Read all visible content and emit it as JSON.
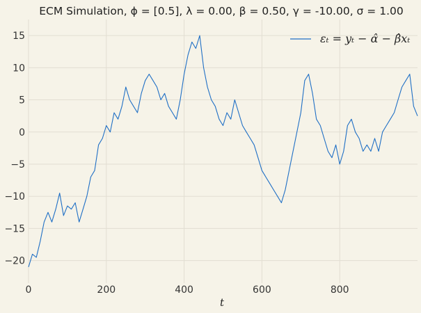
{
  "chart_data": {
    "type": "line",
    "title": "ECM Simulation, ϕ = [0.5], λ = 0.00, β = 0.50, γ = -10.00, σ = 1.00",
    "xlabel": "t",
    "ylabel": "",
    "xlim": [
      0,
      1000
    ],
    "ylim": [
      -23.5,
      17.5
    ],
    "xticks": [
      0,
      200,
      400,
      600,
      800
    ],
    "yticks": [
      -20,
      -15,
      -10,
      -5,
      0,
      5,
      10,
      15
    ],
    "grid": true,
    "legend_position": "top-right",
    "series": [
      {
        "name": "εₜ = yₜ − α̂ − β̂xₜ",
        "color": "#1f6fc5",
        "x": [
          0,
          10,
          20,
          30,
          40,
          50,
          60,
          70,
          80,
          90,
          100,
          110,
          120,
          130,
          140,
          150,
          160,
          170,
          180,
          190,
          200,
          210,
          220,
          230,
          240,
          250,
          260,
          270,
          280,
          290,
          300,
          310,
          320,
          330,
          340,
          350,
          360,
          370,
          380,
          390,
          400,
          410,
          420,
          430,
          440,
          450,
          460,
          470,
          480,
          490,
          500,
          510,
          520,
          530,
          540,
          550,
          560,
          570,
          580,
          590,
          600,
          610,
          620,
          630,
          640,
          650,
          660,
          670,
          680,
          690,
          700,
          710,
          720,
          730,
          740,
          750,
          760,
          770,
          780,
          790,
          800,
          810,
          820,
          830,
          840,
          850,
          860,
          870,
          880,
          890,
          900,
          910,
          920,
          930,
          940,
          950,
          960,
          970,
          980,
          990,
          1000
        ],
        "y": [
          -21,
          -19,
          -19.5,
          -17,
          -14,
          -12.5,
          -14,
          -12,
          -9.5,
          -13,
          -11.5,
          -12,
          -11,
          -14,
          -12,
          -10,
          -7,
          -6,
          -2,
          -1,
          1,
          0,
          3,
          2,
          4,
          7,
          5,
          4,
          3,
          6,
          8,
          9,
          8,
          7,
          5,
          6,
          4,
          3,
          2,
          5,
          9,
          12,
          14,
          13,
          15,
          10,
          7,
          5,
          4,
          2,
          1,
          3,
          2,
          5,
          3,
          1,
          0,
          -1,
          -2,
          -4,
          -6,
          -7,
          -8,
          -9,
          -10,
          -11,
          -9,
          -6,
          -3,
          0,
          3,
          8,
          9,
          6,
          2,
          1,
          -1,
          -3,
          -4,
          -2,
          -5,
          -3,
          1,
          2,
          0,
          -1,
          -3,
          -2,
          -3,
          -1,
          -3,
          0,
          1,
          2,
          3,
          5,
          7,
          8,
          9,
          4,
          2.5
        ]
      }
    ]
  }
}
